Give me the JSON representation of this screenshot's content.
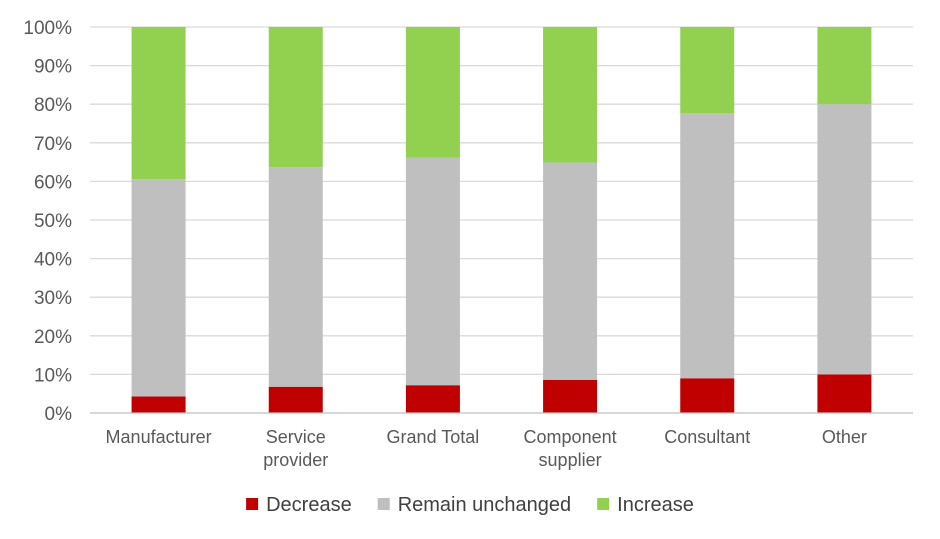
{
  "chart_data": {
    "type": "bar",
    "stacked": true,
    "categories": [
      "Manufacturer",
      "Service provider",
      "Grand Total",
      "Component supplier",
      "Consultant",
      "Other"
    ],
    "category_lines": [
      [
        "Manufacturer"
      ],
      [
        "Service",
        "provider"
      ],
      [
        "Grand Total"
      ],
      [
        "Component",
        "supplier"
      ],
      [
        "Consultant"
      ],
      [
        "Other"
      ]
    ],
    "series": [
      {
        "name": "Decrease",
        "color": "#c00000",
        "values": [
          4.3,
          6.8,
          7.2,
          8.6,
          9.0,
          10.0
        ]
      },
      {
        "name": "Remain unchanged",
        "color": "#bfbfbf",
        "values": [
          56.3,
          56.9,
          59.0,
          56.3,
          68.7,
          70.0
        ]
      },
      {
        "name": "Increase",
        "color": "#92d050",
        "values": [
          39.4,
          36.3,
          33.8,
          35.1,
          22.3,
          20.0
        ]
      }
    ],
    "yticks": [
      "0%",
      "10%",
      "20%",
      "30%",
      "40%",
      "50%",
      "60%",
      "70%",
      "80%",
      "90%",
      "100%"
    ],
    "ylim": [
      0,
      100
    ],
    "grid": true,
    "legend_position": "bottom"
  }
}
